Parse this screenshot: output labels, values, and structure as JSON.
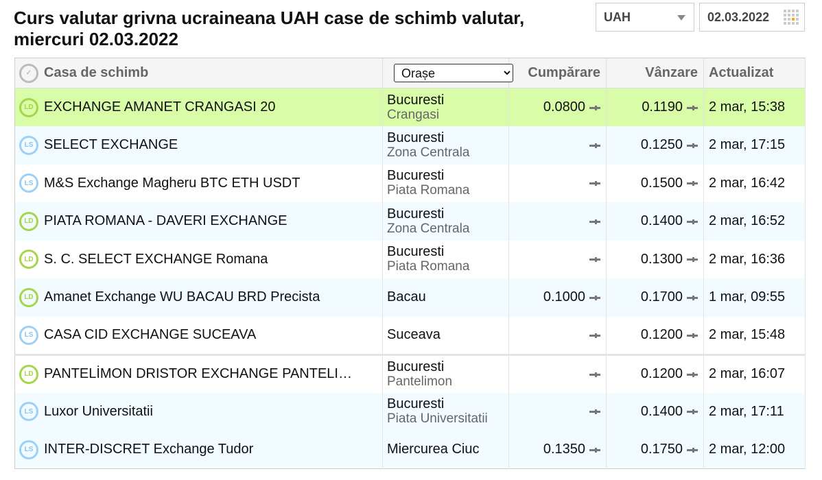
{
  "title": "Curs valutar grivna ucraineana UAH case de schimb valutar, miercuri 02.03.2022",
  "currency_select": "UAH",
  "date_input": "02.03.2022",
  "table": {
    "headers": {
      "name": "Casa de schimb",
      "city_filter": "Orașe",
      "buy": "Cumpărare",
      "sell": "Vânzare",
      "updated": "Actualizat"
    },
    "rows": [
      {
        "icon": "LD",
        "name": "EXCHANGE AMANET CRANGASI 20",
        "city": "Bucuresti",
        "area": "Crangasi",
        "buy": "0.0800",
        "sell": "0.1190",
        "updated": "2 mar, 15:38",
        "highlight": true
      },
      {
        "icon": "LS",
        "name": "SELECT EXCHANGE",
        "city": "Bucuresti",
        "area": "Zona Centrala",
        "buy": "",
        "sell": "0.1250",
        "updated": "2 mar, 17:15"
      },
      {
        "icon": "LS",
        "name": "M&S Exchange Magheru BTC ETH USDT",
        "city": "Bucuresti",
        "area": "Piata Romana",
        "buy": "",
        "sell": "0.1500",
        "updated": "2 mar, 16:42"
      },
      {
        "icon": "LD",
        "name": "PIATA ROMANA - DAVERI EXCHANGE",
        "city": "Bucuresti",
        "area": "Zona Centrala",
        "buy": "",
        "sell": "0.1400",
        "updated": "2 mar, 16:52"
      },
      {
        "icon": "LD",
        "name": "S. C. SELECT EXCHANGE Romana",
        "city": "Bucuresti",
        "area": "Piata Romana",
        "buy": "",
        "sell": "0.1300",
        "updated": "2 mar, 16:36"
      },
      {
        "icon": "LD",
        "name": "Amanet Exchange WU BACAU BRD Precista",
        "city": "Bacau",
        "area": "",
        "buy": "0.1000",
        "sell": "0.1700",
        "updated": "1 mar, 09:55"
      },
      {
        "icon": "LS",
        "name": "CASA CID EXCHANGE SUCEAVA",
        "city": "Suceava",
        "area": "",
        "buy": "",
        "sell": "0.1200",
        "updated": "2 mar, 15:48"
      },
      {
        "icon": "LD",
        "name": "PANTELİMON DRISTOR EXCHANGE PANTELI…",
        "city": "Bucuresti",
        "area": "Pantelimon",
        "buy": "",
        "sell": "0.1200",
        "updated": "2 mar, 16:07"
      },
      {
        "icon": "LS",
        "name": "Luxor Universitatii",
        "city": "Bucuresti",
        "area": "Piata Universitatii",
        "buy": "",
        "sell": "0.1400",
        "updated": "2 mar, 17:11"
      },
      {
        "icon": "LS",
        "name": "INTER-DISCRET Exchange Tudor",
        "city": "Miercurea Ciuc",
        "area": "",
        "buy": "0.1350",
        "sell": "0.1750",
        "updated": "2 mar, 12:00"
      }
    ]
  },
  "colors": {
    "highlight": "#d8fca8",
    "alt_row": "#f2fbff",
    "ld_icon": "#a5d64a",
    "ls_icon": "#9cd0f5"
  }
}
